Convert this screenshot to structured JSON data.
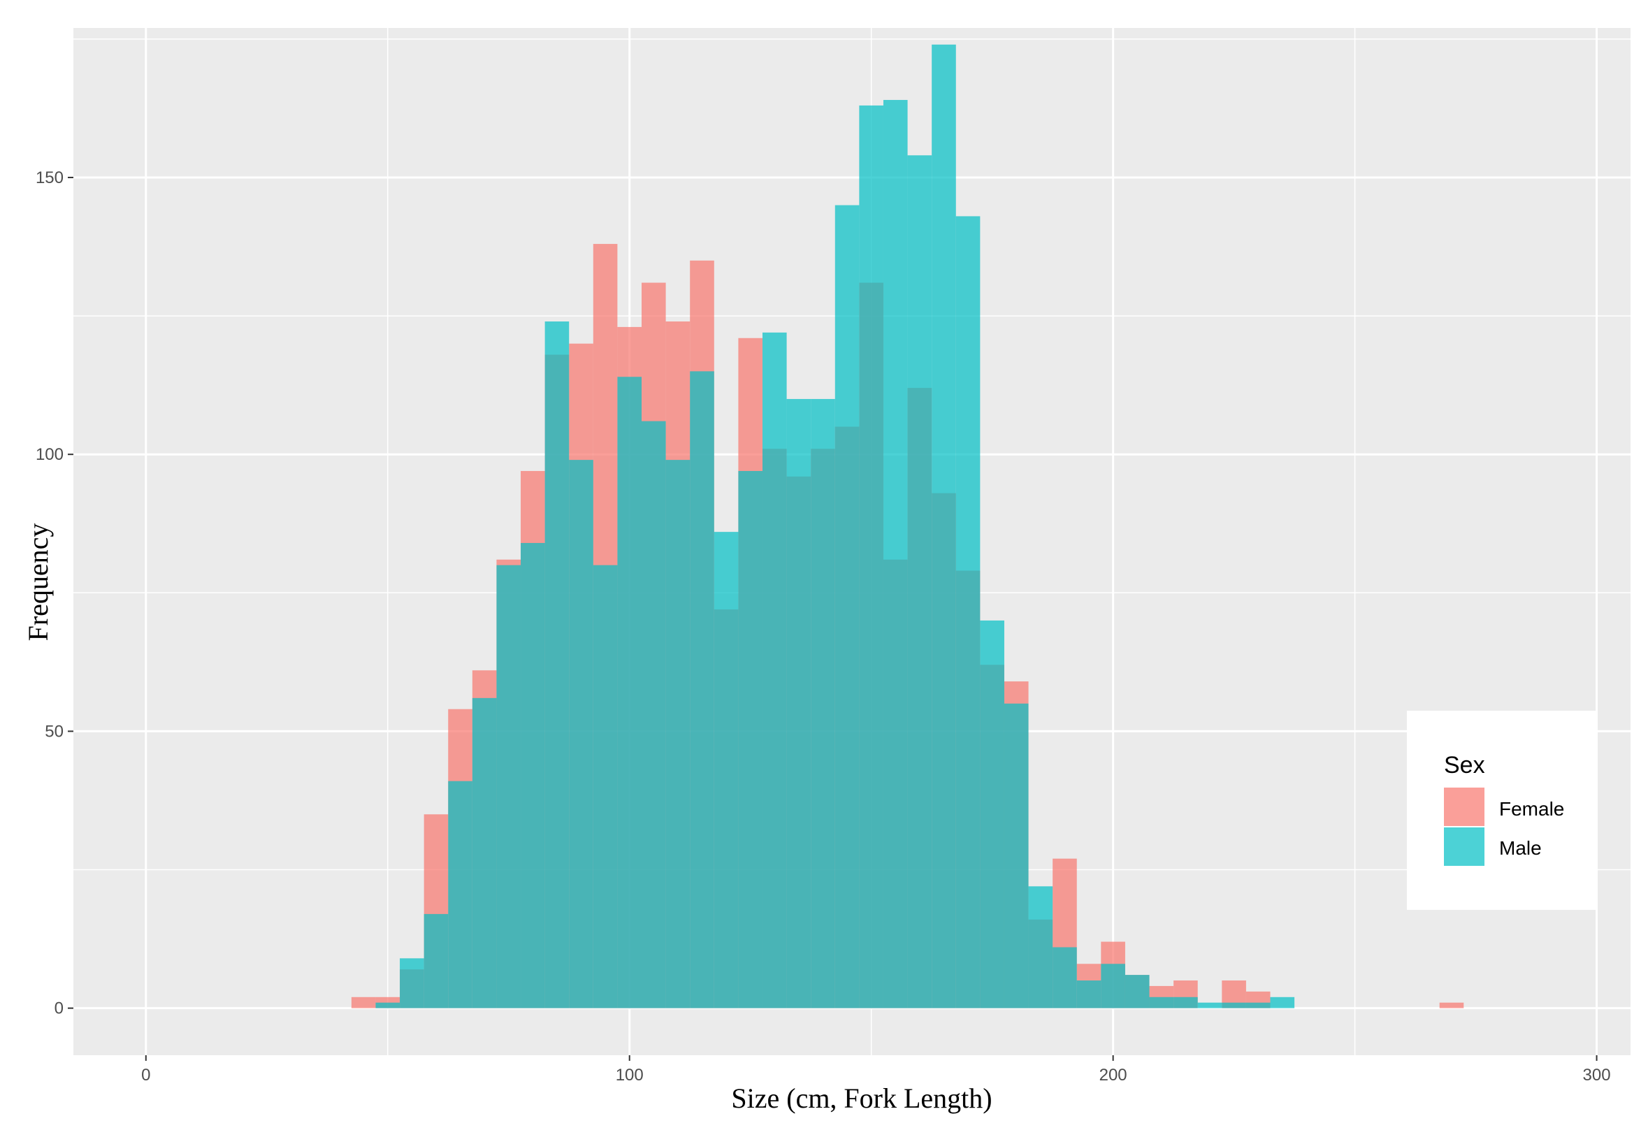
{
  "chart_data": {
    "type": "histogram",
    "xlabel": "Size (cm, Fork Length)",
    "ylabel": "Frequency",
    "xlim": [
      -15,
      307
    ],
    "ylim": [
      -8.5,
      177
    ],
    "x_ticks": [
      0,
      100,
      200,
      300
    ],
    "y_ticks": [
      0,
      50,
      100,
      150
    ],
    "grid": true,
    "legend": {
      "title": "Sex",
      "position": "right-bottom",
      "entries": [
        "Female",
        "Male"
      ]
    },
    "bin_width": 5,
    "series": [
      {
        "name": "Female",
        "color": "#F8766D",
        "bins": [
          {
            "start": 42.5,
            "count": 2
          },
          {
            "start": 47.5,
            "count": 2
          },
          {
            "start": 52.5,
            "count": 7
          },
          {
            "start": 57.5,
            "count": 35
          },
          {
            "start": 62.5,
            "count": 54
          },
          {
            "start": 67.5,
            "count": 61
          },
          {
            "start": 72.5,
            "count": 81
          },
          {
            "start": 77.5,
            "count": 97
          },
          {
            "start": 82.5,
            "count": 118
          },
          {
            "start": 87.5,
            "count": 120
          },
          {
            "start": 92.5,
            "count": 138
          },
          {
            "start": 97.5,
            "count": 123
          },
          {
            "start": 102.5,
            "count": 131
          },
          {
            "start": 107.5,
            "count": 124
          },
          {
            "start": 112.5,
            "count": 135
          },
          {
            "start": 117.5,
            "count": 72
          },
          {
            "start": 122.5,
            "count": 121
          },
          {
            "start": 127.5,
            "count": 101
          },
          {
            "start": 132.5,
            "count": 96
          },
          {
            "start": 137.5,
            "count": 101
          },
          {
            "start": 142.5,
            "count": 105
          },
          {
            "start": 147.5,
            "count": 131
          },
          {
            "start": 152.5,
            "count": 81
          },
          {
            "start": 157.5,
            "count": 112
          },
          {
            "start": 162.5,
            "count": 93
          },
          {
            "start": 167.5,
            "count": 79
          },
          {
            "start": 172.5,
            "count": 62
          },
          {
            "start": 177.5,
            "count": 59
          },
          {
            "start": 182.5,
            "count": 16
          },
          {
            "start": 187.5,
            "count": 27
          },
          {
            "start": 192.5,
            "count": 8
          },
          {
            "start": 197.5,
            "count": 12
          },
          {
            "start": 202.5,
            "count": 6
          },
          {
            "start": 207.5,
            "count": 4
          },
          {
            "start": 212.5,
            "count": 5
          },
          {
            "start": 217.5,
            "count": 0
          },
          {
            "start": 222.5,
            "count": 5
          },
          {
            "start": 227.5,
            "count": 3
          },
          {
            "start": 232.5,
            "count": 0
          },
          {
            "start": 267.5,
            "count": 1
          }
        ]
      },
      {
        "name": "Male",
        "color": "#00BFC4",
        "bins": [
          {
            "start": 47.5,
            "count": 1
          },
          {
            "start": 52.5,
            "count": 9
          },
          {
            "start": 57.5,
            "count": 17
          },
          {
            "start": 62.5,
            "count": 41
          },
          {
            "start": 67.5,
            "count": 56
          },
          {
            "start": 72.5,
            "count": 80
          },
          {
            "start": 77.5,
            "count": 84
          },
          {
            "start": 82.5,
            "count": 124
          },
          {
            "start": 87.5,
            "count": 99
          },
          {
            "start": 92.5,
            "count": 80
          },
          {
            "start": 97.5,
            "count": 114
          },
          {
            "start": 102.5,
            "count": 106
          },
          {
            "start": 107.5,
            "count": 99
          },
          {
            "start": 112.5,
            "count": 115
          },
          {
            "start": 117.5,
            "count": 86
          },
          {
            "start": 122.5,
            "count": 97
          },
          {
            "start": 127.5,
            "count": 122
          },
          {
            "start": 132.5,
            "count": 110
          },
          {
            "start": 137.5,
            "count": 110
          },
          {
            "start": 142.5,
            "count": 145
          },
          {
            "start": 147.5,
            "count": 163
          },
          {
            "start": 152.5,
            "count": 164
          },
          {
            "start": 157.5,
            "count": 154
          },
          {
            "start": 162.5,
            "count": 174
          },
          {
            "start": 167.5,
            "count": 143
          },
          {
            "start": 172.5,
            "count": 70
          },
          {
            "start": 177.5,
            "count": 55
          },
          {
            "start": 182.5,
            "count": 22
          },
          {
            "start": 187.5,
            "count": 11
          },
          {
            "start": 192.5,
            "count": 5
          },
          {
            "start": 197.5,
            "count": 8
          },
          {
            "start": 202.5,
            "count": 6
          },
          {
            "start": 207.5,
            "count": 2
          },
          {
            "start": 212.5,
            "count": 2
          },
          {
            "start": 217.5,
            "count": 1
          },
          {
            "start": 222.5,
            "count": 1
          },
          {
            "start": 227.5,
            "count": 1
          },
          {
            "start": 232.5,
            "count": 2
          }
        ]
      }
    ]
  }
}
